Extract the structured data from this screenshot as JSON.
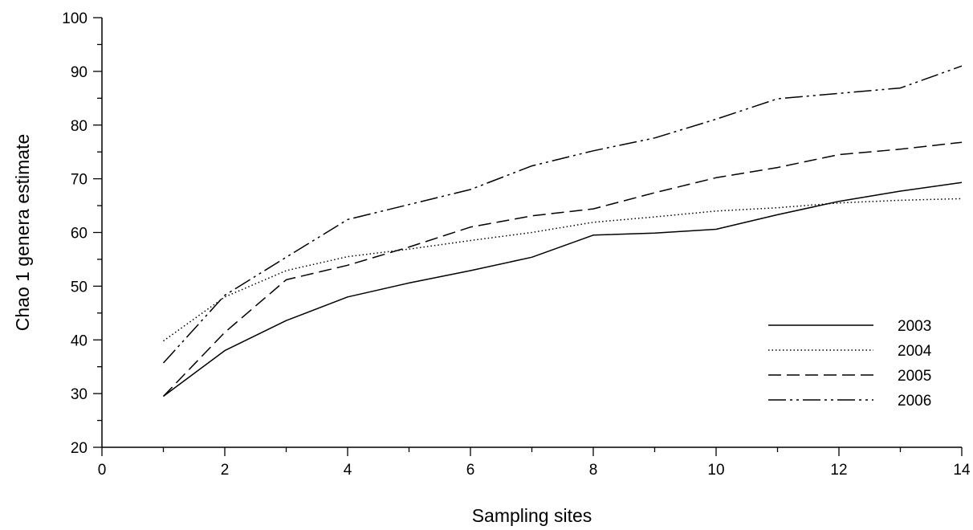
{
  "chart_data": {
    "type": "line",
    "title": "",
    "xlabel": "Sampling sites",
    "ylabel": "Chao 1 genera estimate",
    "xlim": [
      0,
      14
    ],
    "ylim": [
      20,
      100
    ],
    "xticks": [
      0,
      2,
      4,
      6,
      8,
      10,
      12,
      14
    ],
    "yticks": [
      20,
      30,
      40,
      50,
      60,
      70,
      80,
      90,
      100
    ],
    "grid": false,
    "legend_position": "bottom-right",
    "x": [
      1,
      2,
      3,
      4,
      5,
      6,
      7,
      8,
      9,
      10,
      11,
      12,
      13,
      14
    ],
    "series": [
      {
        "name": "2003",
        "dash": "solid",
        "values": [
          29.5,
          38.0,
          43.6,
          48.0,
          50.6,
          52.9,
          55.4,
          59.5,
          59.9,
          60.6,
          63.3,
          65.8,
          67.7,
          69.3
        ]
      },
      {
        "name": "2004",
        "dash": "dotted",
        "values": [
          39.8,
          48.0,
          52.9,
          55.5,
          56.9,
          58.5,
          60.0,
          61.9,
          62.9,
          64.0,
          64.6,
          65.5,
          66.0,
          66.3
        ]
      },
      {
        "name": "2005",
        "dash": "dashed",
        "values": [
          29.5,
          41.4,
          51.2,
          53.9,
          57.3,
          61.0,
          63.1,
          64.4,
          67.4,
          70.2,
          72.1,
          74.5,
          75.5,
          76.8
        ]
      },
      {
        "name": "2006",
        "dash": "dash-dot-dot",
        "values": [
          35.7,
          48.3,
          55.4,
          62.4,
          65.2,
          68.0,
          72.4,
          75.2,
          77.6,
          81.1,
          84.9,
          85.9,
          86.9,
          91.0
        ]
      }
    ]
  }
}
